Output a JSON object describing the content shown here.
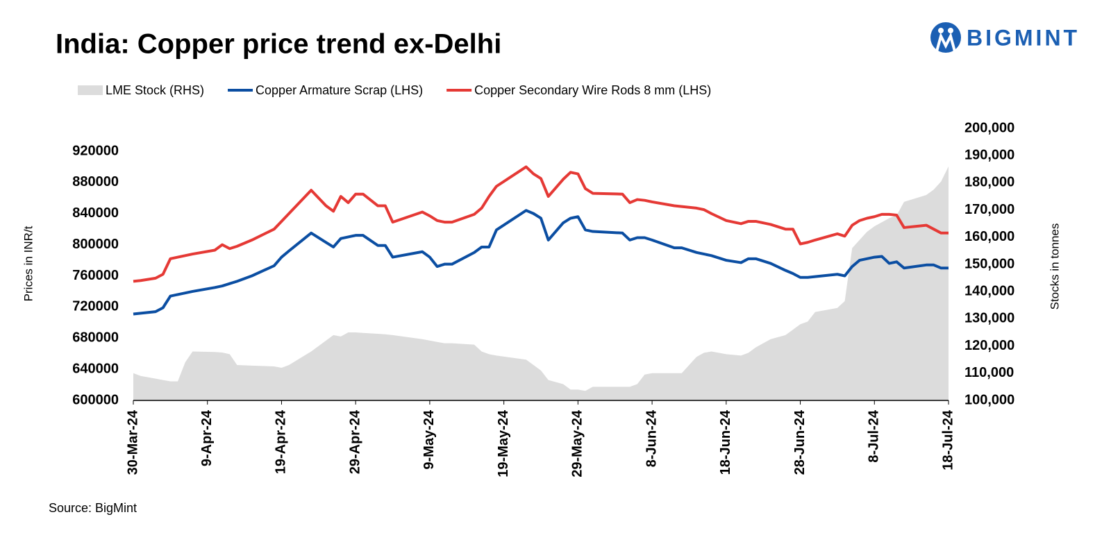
{
  "logo": "BIGMINT",
  "source": "Source: BigMint",
  "chart_data": {
    "type": "line",
    "title": "India: Copper price trend ex-Delhi",
    "ylabel": "Prices in INR/t",
    "y2label": "Stocks in tonnes",
    "x": [
      "30-Mar-24",
      "31-Mar-24",
      "2-Apr-24",
      "3-Apr-24",
      "4-Apr-24",
      "5-Apr-24",
      "6-Apr-24",
      "7-Apr-24",
      "10-Apr-24",
      "11-Apr-24",
      "12-Apr-24",
      "13-Apr-24",
      "15-Apr-24",
      "18-Apr-24",
      "19-Apr-24",
      "20-Apr-24",
      "23-Apr-24",
      "25-Apr-24",
      "26-Apr-24",
      "27-Apr-24",
      "28-Apr-24",
      "29-Apr-24",
      "30-Apr-24",
      "2-May-24",
      "3-May-24",
      "4-May-24",
      "8-May-24",
      "9-May-24",
      "10-May-24",
      "11-May-24",
      "12-May-24",
      "15-May-24",
      "16-May-24",
      "17-May-24",
      "18-May-24",
      "22-May-24",
      "23-May-24",
      "24-May-24",
      "25-May-24",
      "27-May-24",
      "28-May-24",
      "29-May-24",
      "30-May-24",
      "31-May-24",
      "4-Jun-24",
      "5-Jun-24",
      "6-Jun-24",
      "7-Jun-24",
      "8-Jun-24",
      "11-Jun-24",
      "12-Jun-24",
      "14-Jun-24",
      "15-Jun-24",
      "16-Jun-24",
      "18-Jun-24",
      "20-Jun-24",
      "21-Jun-24",
      "22-Jun-24",
      "24-Jun-24",
      "26-Jun-24",
      "27-Jun-24",
      "28-Jun-24",
      "29-Jun-24",
      "30-Jun-24",
      "3-Jul-24",
      "4-Jul-24",
      "5-Jul-24",
      "6-Jul-24",
      "7-Jul-24",
      "8-Jul-24",
      "9-Jul-24",
      "10-Jul-24",
      "11-Jul-24",
      "12-Jul-24",
      "15-Jul-24",
      "16-Jul-24",
      "17-Jul-24",
      "18-Jul-24"
    ],
    "series": [
      {
        "name": "LME Stock (RHS)",
        "type": "area",
        "axis": "y2",
        "color": "#dcdcdc",
        "values": [
          110000,
          109000,
          108000,
          107500,
          107000,
          107000,
          114000,
          118000,
          117800,
          117600,
          117000,
          113000,
          112800,
          112500,
          112000,
          113000,
          118000,
          122000,
          124000,
          123500,
          125000,
          125000,
          124800,
          124500,
          124300,
          124000,
          122500,
          122000,
          121500,
          121000,
          121000,
          120500,
          118000,
          117000,
          116500,
          115000,
          113000,
          111000,
          107500,
          106000,
          104000,
          104000,
          103500,
          105000,
          105000,
          105000,
          106000,
          109500,
          110000,
          110000,
          110000,
          116000,
          117500,
          118000,
          117000,
          116500,
          117500,
          119500,
          122500,
          124000,
          126000,
          128000,
          129000,
          132500,
          134000,
          136500,
          156000,
          159000,
          162000,
          164000,
          165500,
          167000,
          168000,
          173000,
          175500,
          177500,
          180500,
          186000
        ]
      },
      {
        "name": "Copper Armature Scrap (LHS)",
        "type": "line",
        "color": "#0b4ea2",
        "values": [
          711000,
          712000,
          714000,
          719000,
          734000,
          736000,
          738000,
          740000,
          745000,
          747000,
          750000,
          753000,
          760000,
          773000,
          784000,
          792000,
          815000,
          803000,
          797000,
          808000,
          810000,
          812000,
          812000,
          799000,
          799000,
          784000,
          791000,
          784000,
          772000,
          775000,
          775000,
          790000,
          797000,
          797000,
          819000,
          844000,
          840000,
          834000,
          806000,
          828000,
          834000,
          836000,
          819000,
          817000,
          815000,
          806000,
          809000,
          809000,
          806000,
          796000,
          796000,
          790000,
          788000,
          786000,
          780000,
          777000,
          782000,
          782000,
          776000,
          767000,
          763000,
          758000,
          758000,
          759000,
          762000,
          760000,
          772000,
          780000,
          782000,
          784000,
          785000,
          776000,
          778000,
          770000,
          774000,
          774000,
          770000,
          770000
        ]
      },
      {
        "name": "Copper Secondary Wire Rods 8 mm (LHS)",
        "type": "line",
        "color": "#e53935",
        "values": [
          753000,
          754000,
          757000,
          762000,
          782000,
          784000,
          786000,
          788000,
          793000,
          800000,
          795000,
          798000,
          806000,
          820000,
          830000,
          840000,
          870000,
          850000,
          843000,
          862000,
          854000,
          865000,
          865000,
          850000,
          850000,
          829000,
          842000,
          837000,
          831000,
          829000,
          829000,
          839000,
          847000,
          862000,
          875000,
          900000,
          891000,
          885000,
          862000,
          884000,
          893000,
          891000,
          872000,
          866000,
          865000,
          854000,
          858000,
          857000,
          855000,
          850000,
          849000,
          847000,
          845000,
          840000,
          831000,
          827000,
          830000,
          830000,
          826000,
          820000,
          820000,
          801000,
          803000,
          806000,
          814000,
          811000,
          825000,
          831000,
          834000,
          836000,
          839000,
          839000,
          838000,
          822000,
          825000,
          820000,
          815000,
          815000
        ]
      }
    ],
    "xlim": [
      "30-Mar-24",
      "18-Jul-24"
    ],
    "xticks": [
      "30-Mar-24",
      "9-Apr-24",
      "19-Apr-24",
      "29-Apr-24",
      "9-May-24",
      "19-May-24",
      "29-May-24",
      "8-Jun-24",
      "18-Jun-24",
      "28-Jun-24",
      "8-Jul-24",
      "18-Jul-24"
    ],
    "ylim": [
      600000,
      920000
    ],
    "yticks": [
      600000,
      640000,
      680000,
      720000,
      760000,
      800000,
      840000,
      880000,
      920000
    ],
    "y2lim": [
      100000,
      200000
    ],
    "y2ticks": [
      {
        "value": 100000,
        "label": "100,000"
      },
      {
        "value": 110000,
        "label": "110,000"
      },
      {
        "value": 120000,
        "label": "120,000"
      },
      {
        "value": 130000,
        "label": "130,000"
      },
      {
        "value": 140000,
        "label": "140,000"
      },
      {
        "value": 150000,
        "label": "150,000"
      },
      {
        "value": 160000,
        "label": "160,000"
      },
      {
        "value": 170000,
        "label": "170,000"
      },
      {
        "value": 180000,
        "label": "180,000"
      },
      {
        "value": 190000,
        "label": "190,000"
      },
      {
        "value": 200000,
        "label": "200,000"
      }
    ],
    "grid": false,
    "legend": "top"
  }
}
